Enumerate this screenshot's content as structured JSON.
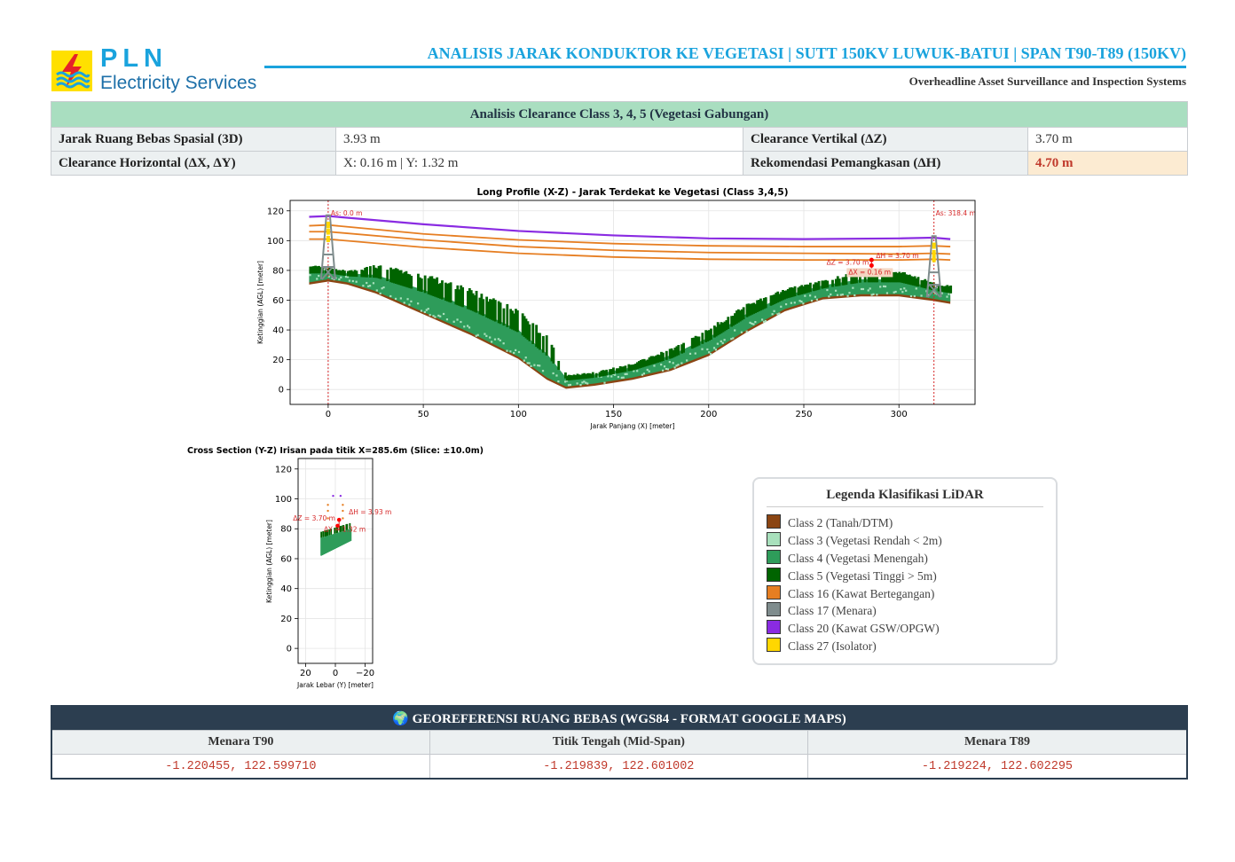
{
  "header": {
    "logo_text": "PLN",
    "logo_subtitle": "Electricity Services",
    "title": "ANALISIS JARAK KONDUKTOR KE VEGETASI | SUTT 150KV LUWUK-BATUI | SPAN T90-T89 (150KV)",
    "subtitle": "Overheadline Asset Surveillance and Inspection Systems"
  },
  "clearance": {
    "heading": "Analisis Clearance Class 3, 4, 5 (Vegetasi Gabungan)",
    "rows": [
      {
        "label1": "Jarak Ruang Bebas Spasial (3D)",
        "value1": "3.93 m",
        "label2": "Clearance Vertikal (ΔZ)",
        "value2": "3.70 m"
      },
      {
        "label1": "Clearance Horizontal (ΔX, ΔY)",
        "value1": "X: 0.16 m | Y: 1.32 m",
        "label2": "Rekomendasi Pemangkasan (ΔH)",
        "value2": "4.70 m"
      }
    ]
  },
  "chart_data": [
    {
      "type": "scatter",
      "title": "Long Profile (X-Z) - Jarak Terdekat ke Vegetasi (Class 3,4,5)",
      "xlabel": "Jarak Panjang (X) [meter]",
      "ylabel": "Ketinggian (AGL) [meter]",
      "xlim": [
        -20,
        340
      ],
      "ylim": [
        -10,
        127
      ],
      "xticks": [
        0,
        50,
        100,
        150,
        200,
        250,
        300
      ],
      "yticks": [
        0,
        20,
        40,
        60,
        80,
        100,
        120
      ],
      "grid": true,
      "tower_lines": [
        {
          "x": 0,
          "label": "As: 0.0 m"
        },
        {
          "x": 318.4,
          "label": "As: 318.4 m"
        }
      ],
      "conductors": [
        {
          "class": "Class 20",
          "x": [
            -10,
            0,
            50,
            100,
            150,
            200,
            250,
            300,
            318,
            327
          ],
          "y": [
            116,
            116.5,
            111,
            106.5,
            103.5,
            101.5,
            101,
            101.5,
            102,
            101
          ]
        },
        {
          "class": "Class 16",
          "x": [
            -10,
            0,
            50,
            100,
            150,
            200,
            250,
            300,
            318,
            327
          ],
          "y": [
            110,
            110.5,
            104.5,
            100.5,
            98,
            96.5,
            96,
            96,
            96.5,
            96
          ]
        },
        {
          "class": "Class 16",
          "x": [
            -10,
            0,
            50,
            100,
            150,
            200,
            250,
            300,
            318,
            327
          ],
          "y": [
            106,
            106,
            100.5,
            96,
            93.5,
            92,
            91.5,
            91,
            91.5,
            91
          ]
        },
        {
          "class": "Class 16",
          "x": [
            -10,
            0,
            50,
            100,
            150,
            200,
            250,
            300,
            318,
            327
          ],
          "y": [
            101,
            101,
            95.5,
            91.5,
            89,
            87.5,
            87,
            87,
            87.5,
            87
          ]
        }
      ],
      "terrain": {
        "x": [
          -10,
          0,
          10,
          25,
          50,
          75,
          100,
          115,
          125,
          140,
          160,
          180,
          200,
          220,
          240,
          260,
          280,
          300,
          318,
          327
        ],
        "ground": [
          72,
          74,
          72,
          66,
          52,
          38,
          22,
          8,
          2,
          4,
          8,
          14,
          24,
          40,
          54,
          62,
          64,
          64,
          61,
          59
        ],
        "canopy": [
          84,
          82,
          80,
          84,
          78,
          68,
          54,
          36,
          10,
          12,
          18,
          28,
          42,
          58,
          68,
          74,
          80,
          80,
          72,
          70
        ]
      },
      "annotations": [
        "ΔH = 3.70 m",
        "ΔZ = 3.70 m",
        "ΔX = 0.16 m"
      ],
      "closest_point": {
        "x": 285.6,
        "conductor_y": 87,
        "veg_y": 83.3
      }
    },
    {
      "type": "scatter",
      "title": "Cross Section (Y-Z) Irisan pada titik X=285.6m (Slice: ±10.0m)",
      "xlabel": "Jarak Lebar (Y) [meter]",
      "ylabel": "Ketinggian (AGL) [meter]",
      "xlim": [
        25,
        -25
      ],
      "ylim": [
        -10,
        127
      ],
      "xticks": [
        20,
        0,
        -20
      ],
      "yticks": [
        0,
        20,
        40,
        60,
        80,
        100,
        120
      ],
      "grid": true,
      "conductor_points": [
        {
          "class": "Class 20",
          "y": 1.5,
          "z": 102
        },
        {
          "class": "Class 20",
          "y": -3.5,
          "z": 102
        },
        {
          "class": "Class 16",
          "y": 5,
          "z": 96
        },
        {
          "class": "Class 16",
          "y": -5,
          "z": 96
        },
        {
          "class": "Class 16",
          "y": 5,
          "z": 92
        },
        {
          "class": "Class 16",
          "y": -5,
          "z": 92
        },
        {
          "class": "Class 16",
          "y": 5,
          "z": 87
        },
        {
          "class": "Class 16",
          "y": -5,
          "z": 87
        }
      ],
      "vegetation": {
        "y_range": [
          10,
          -10
        ],
        "z_low": [
          62,
          72
        ],
        "z_high": [
          78,
          84
        ]
      },
      "annotations": [
        "ΔH = 3.93 m",
        "ΔZ = 3.70 m",
        "ΔY = 1.32 m"
      ]
    }
  ],
  "legend": {
    "title": "Legenda Klasifikasi LiDAR",
    "items": [
      {
        "label": "Class 2 (Tanah/DTM)",
        "color": "#8b4513"
      },
      {
        "label": "Class 3 (Vegetasi Rendah < 2m)",
        "color": "#a8e0bc"
      },
      {
        "label": "Class 4 (Vegetasi Menengah)",
        "color": "#2e9c5a"
      },
      {
        "label": "Class 5 (Vegetasi Tinggi > 5m)",
        "color": "#006400"
      },
      {
        "label": "Class 16 (Kawat Bertegangan)",
        "color": "#e67e22"
      },
      {
        "label": "Class 17 (Menara)",
        "color": "#7f8c8d"
      },
      {
        "label": "Class 20 (Kawat GSW/OPGW)",
        "color": "#8a2be2"
      },
      {
        "label": "Class 27 (Isolator)",
        "color": "#ffd700"
      }
    ]
  },
  "geo": {
    "heading": "🌍 GEOREFERENSI RUANG BEBAS (WGS84 - FORMAT GOOGLE MAPS)",
    "columns": [
      "Menara T90",
      "Titik Tengah (Mid-Span)",
      "Menara T89"
    ],
    "values": [
      "-1.220455, 122.599710",
      "-1.219839, 122.601002",
      "-1.219224, 122.602295"
    ]
  }
}
